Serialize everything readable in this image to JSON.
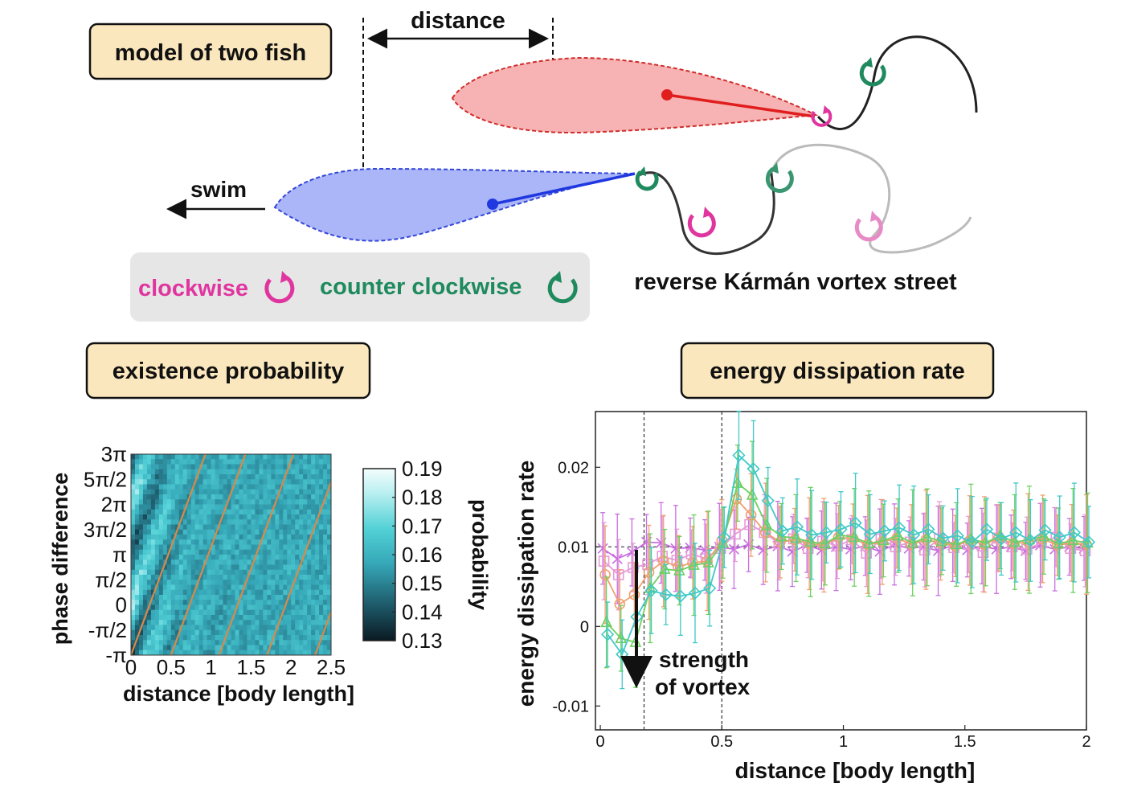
{
  "diagram": {
    "title_box": "model of two fish",
    "distance_label": "distance",
    "swim_label": "swim",
    "legend": {
      "clockwise": "clockwise",
      "counter_clockwise": "counter clockwise",
      "clockwise_color": "#e0359f",
      "counter_clockwise_color": "#1f8a5e"
    },
    "street_label": "reverse Kármán vortex street",
    "colors": {
      "front_fish": "#f4a6a6",
      "front_fish_edge": "#d22b2b",
      "rear_fish": "#a8b4f5",
      "rear_fish_edge": "#3346d8",
      "box_fill": "#fbe7bd"
    }
  },
  "panel_probability": {
    "title_box": "existence probability",
    "ylabel": "phase difference",
    "xlabel": "distance [body length]",
    "colorbar_label": "probability"
  },
  "panel_energy": {
    "title_box": "energy dissipation rate",
    "ylabel": "energy dissipation rate",
    "xlabel": "distance  [body length]",
    "annotation_line1": "strength",
    "annotation_line2": "of vortex"
  },
  "chart_data": [
    {
      "type": "heatmap",
      "title": "existence probability",
      "xlabel": "distance [body length]",
      "ylabel": "phase difference",
      "x_ticks": [
        "0",
        "0.5",
        "1",
        "1.5",
        "2",
        "2.5"
      ],
      "x_tick_values": [
        0,
        0.5,
        1,
        1.5,
        2,
        2.5
      ],
      "y_ticks": [
        "-π",
        "-π/2",
        "0",
        "π/2",
        "π",
        "3π/2",
        "2π",
        "5π/2",
        "3π"
      ],
      "y_tick_values": [
        -1,
        -0.5,
        0,
        0.5,
        1,
        1.5,
        2,
        2.5,
        3
      ],
      "xlim": [
        0,
        2.5
      ],
      "ylim_in_pi": [
        -1,
        3
      ],
      "colorbar": {
        "label": "probability",
        "ticks": [
          "0.13",
          "0.14",
          "0.15",
          "0.16",
          "0.17",
          "0.18",
          "0.19"
        ],
        "tick_values": [
          0.13,
          0.14,
          0.15,
          0.16,
          0.17,
          0.18,
          0.19
        ],
        "range": [
          0.13,
          0.19
        ]
      },
      "guide_lines_x_at_minus_pi": [
        0.0,
        0.5,
        1.1,
        1.7,
        2.3
      ],
      "guide_line_slope_pi_per_body_length": 4.3
    },
    {
      "type": "line",
      "title": "energy dissipation rate",
      "xlabel": "distance  [body length]",
      "ylabel": "energy dissipation rate",
      "x_ticks": [
        "0",
        "0.5",
        "1",
        "1.5",
        "2"
      ],
      "x_tick_values": [
        0,
        0.5,
        1,
        1.5,
        2
      ],
      "y_ticks": [
        "-0.01",
        "0",
        "0.01",
        "0.02"
      ],
      "y_tick_values": [
        -0.01,
        0,
        0.01,
        0.02
      ],
      "xlim": [
        -0.02,
        2.0
      ],
      "ylim": [
        -0.013,
        0.027
      ],
      "reference_lines": {
        "horizontal_y": 0.01,
        "vertical_x": [
          0.18,
          0.5
        ]
      },
      "x": [
        0.02,
        0.08,
        0.14,
        0.2,
        0.26,
        0.32,
        0.38,
        0.44,
        0.5,
        0.56,
        0.62,
        0.68,
        0.74,
        0.8,
        0.86,
        0.92,
        0.98,
        1.04,
        1.1,
        1.16,
        1.22,
        1.28,
        1.34,
        1.4,
        1.46,
        1.52,
        1.58,
        1.64,
        1.7,
        1.76,
        1.82,
        1.88,
        1.94,
        2.0
      ],
      "series": [
        {
          "name": "magenta x",
          "color": "#c86ee0",
          "marker": "x",
          "values": [
            0.0098,
            0.0085,
            0.0093,
            0.0106,
            0.0105,
            0.0098,
            0.0099,
            0.0096,
            0.01,
            0.0097,
            0.0103,
            0.0096,
            0.0101,
            0.0094,
            0.0102,
            0.0096,
            0.01,
            0.0097,
            0.0101,
            0.0094,
            0.0103,
            0.0098,
            0.01,
            0.0095,
            0.0102,
            0.0096,
            0.0101,
            0.0097,
            0.01,
            0.0095,
            0.0102,
            0.0097,
            0.01,
            0.0098
          ],
          "err": 0.0045
        },
        {
          "name": "pink square",
          "color": "#e69ad6",
          "marker": "square",
          "values": [
            0.0082,
            0.0065,
            0.0074,
            0.0078,
            0.0088,
            0.0083,
            0.0091,
            0.0085,
            0.0098,
            0.0116,
            0.0128,
            0.0118,
            0.0104,
            0.011,
            0.0098,
            0.0107,
            0.0101,
            0.0109,
            0.0092,
            0.011,
            0.01,
            0.0106,
            0.0096,
            0.011,
            0.0099,
            0.0103,
            0.0093,
            0.0111,
            0.01,
            0.0097,
            0.0105,
            0.0112,
            0.0098,
            0.0095
          ],
          "err": 0.004
        },
        {
          "name": "orange circle",
          "color": "#f0a070",
          "marker": "circle",
          "values": [
            0.0065,
            0.0028,
            0.004,
            0.0068,
            0.0082,
            0.0075,
            0.008,
            0.0082,
            0.0108,
            0.016,
            0.014,
            0.0118,
            0.0106,
            0.0109,
            0.0104,
            0.0102,
            0.0112,
            0.011,
            0.0103,
            0.0106,
            0.0111,
            0.0103,
            0.0109,
            0.0105,
            0.0101,
            0.0108,
            0.0103,
            0.0111,
            0.0104,
            0.0106,
            0.011,
            0.0102,
            0.0105,
            0.0103
          ],
          "err": 0.005
        },
        {
          "name": "green triangle",
          "color": "#6ed060",
          "marker": "triangle",
          "values": [
            0.0005,
            -0.0015,
            -0.002,
            0.0048,
            0.0072,
            0.007,
            0.0077,
            0.008,
            0.0105,
            0.018,
            0.0165,
            0.0127,
            0.0113,
            0.0111,
            0.0106,
            0.0104,
            0.0115,
            0.0112,
            0.0104,
            0.0108,
            0.0114,
            0.0105,
            0.0112,
            0.0107,
            0.0103,
            0.011,
            0.0105,
            0.0114,
            0.0106,
            0.0109,
            0.0113,
            0.0104,
            0.0108,
            0.0105
          ],
          "err": 0.0055
        },
        {
          "name": "cyan diamond",
          "color": "#40c8c8",
          "marker": "diamond",
          "values": [
            -0.001,
            -0.0035,
            0.0012,
            0.0045,
            0.004,
            0.0038,
            0.0042,
            0.0048,
            0.0112,
            0.0215,
            0.0198,
            0.0158,
            0.012,
            0.0125,
            0.0115,
            0.0118,
            0.0122,
            0.013,
            0.0116,
            0.012,
            0.0124,
            0.0115,
            0.0122,
            0.0111,
            0.0114,
            0.0106,
            0.0122,
            0.011,
            0.0118,
            0.0108,
            0.0121,
            0.0112,
            0.0118,
            0.0106
          ],
          "err": 0.005
        }
      ]
    }
  ]
}
